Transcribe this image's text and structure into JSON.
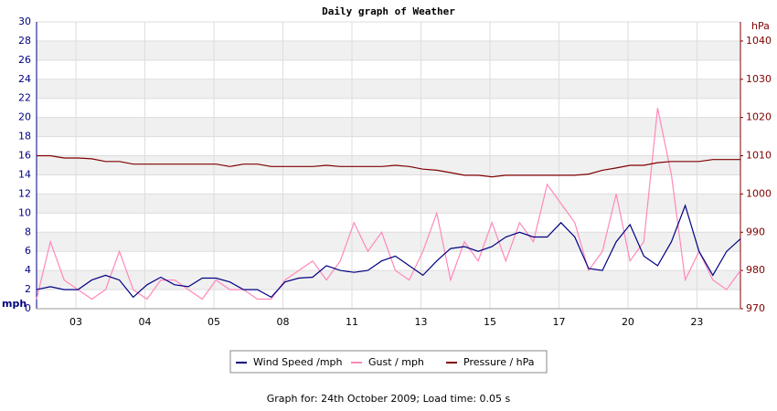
{
  "chart_data": {
    "type": "line",
    "title": "Daily graph of Weather",
    "ylabel": "mph",
    "y2label": "hPa",
    "footer": "Graph for: 24th October 2009; Load time: 0.05 s",
    "x": [
      0,
      0.2,
      0.4,
      0.6,
      0.8,
      1,
      1.2,
      1.4,
      1.6,
      1.8,
      2,
      2.2,
      2.4,
      2.6,
      2.8,
      3,
      3.2,
      3.4,
      3.6,
      3.8,
      4,
      4.2,
      4.4,
      4.6,
      4.8,
      5,
      5.2,
      5.4,
      5.6,
      5.8,
      6,
      6.2,
      6.4,
      6.6,
      6.8,
      7,
      7.2,
      7.4,
      7.6,
      7.8,
      8,
      8.2,
      8.4,
      8.6,
      8.8,
      9,
      9.2,
      9.4,
      9.6,
      9.8,
      10,
      10.2
    ],
    "series": [
      {
        "name": "Wind Speed /mph",
        "color": "#000080",
        "values": [
          2.0,
          2.3,
          2.0,
          2.0,
          3.0,
          3.5,
          3.0,
          1.2,
          2.5,
          3.3,
          2.5,
          2.3,
          3.2,
          3.2,
          2.8,
          2.0,
          2.0,
          1.2,
          2.8,
          3.2,
          3.3,
          4.5,
          4.0,
          3.8,
          4.0,
          5.0,
          5.5,
          4.5,
          3.5,
          5.0,
          6.3,
          6.5,
          6.0,
          6.5,
          7.5,
          8.0,
          7.5,
          7.5,
          9.0,
          7.5,
          4.2,
          4.0,
          7.0,
          8.8,
          5.5,
          4.5,
          7.0,
          10.8,
          6.0,
          3.5,
          6.0,
          7.3
        ]
      },
      {
        "name": "Gust / mph",
        "color": "#ff88bb",
        "values": [
          1,
          7,
          3,
          2,
          1,
          2,
          6,
          2,
          1,
          3,
          3,
          2,
          1,
          3,
          2,
          2,
          1,
          1,
          3,
          4,
          5,
          3,
          5,
          9,
          6,
          8,
          4,
          3,
          6,
          10,
          3,
          7,
          5,
          9,
          5,
          9,
          7,
          13,
          11,
          9,
          4,
          6,
          12,
          5,
          7,
          21,
          14,
          3,
          6,
          3,
          2,
          4
        ]
      },
      {
        "name": "Pressure / hPa",
        "color": "#800000",
        "axis": "y2",
        "values": [
          1010,
          1010,
          1009.4,
          1009.4,
          1009.2,
          1008.5,
          1008.5,
          1007.8,
          1007.8,
          1007.8,
          1007.8,
          1007.8,
          1007.8,
          1007.8,
          1007.2,
          1007.8,
          1007.8,
          1007.2,
          1007.2,
          1007.2,
          1007.2,
          1007.5,
          1007.2,
          1007.2,
          1007.2,
          1007.2,
          1007.5,
          1007.2,
          1006.5,
          1006.2,
          1005.6,
          1004.9,
          1004.9,
          1004.5,
          1004.9,
          1004.9,
          1004.9,
          1004.9,
          1004.9,
          1004.9,
          1005.2,
          1006.2,
          1006.8,
          1007.5,
          1007.5,
          1008.2,
          1008.5,
          1008.5,
          1008.5,
          1009,
          1009,
          1009
        ]
      }
    ],
    "xlim": [
      0,
      10.2
    ],
    "xticks": [
      {
        "value": 0.57,
        "label": "03"
      },
      {
        "value": 1.57,
        "label": "04"
      },
      {
        "value": 2.57,
        "label": "05"
      },
      {
        "value": 3.57,
        "label": "08"
      },
      {
        "value": 4.57,
        "label": "11"
      },
      {
        "value": 5.57,
        "label": "13"
      },
      {
        "value": 6.57,
        "label": "15"
      },
      {
        "value": 7.57,
        "label": "17"
      },
      {
        "value": 8.57,
        "label": "20"
      },
      {
        "value": 9.57,
        "label": "23"
      }
    ],
    "ylim": [
      0,
      30
    ],
    "yticks": [
      0,
      2,
      4,
      6,
      8,
      10,
      12,
      14,
      16,
      18,
      20,
      22,
      24,
      26,
      28,
      30
    ],
    "y2lim": [
      970,
      1045
    ],
    "y2ticks": [
      970,
      980,
      990,
      1000,
      1010,
      1020,
      1030,
      1040
    ],
    "grid": true
  }
}
